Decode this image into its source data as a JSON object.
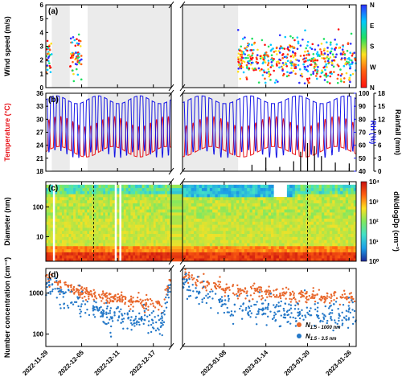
{
  "colors": {
    "gap": "#ebebeb",
    "temperature": "#e8141b",
    "rh": "#1414e6",
    "rainfall": "#000000",
    "n_total": "#e8672b",
    "n_small": "#2478c8"
  },
  "chart_data": [
    {
      "panel": "a",
      "type": "scatter",
      "ylabel": "Wind speed (m/s)",
      "ylim": [
        0,
        6
      ],
      "yticks": [
        0,
        1,
        2,
        3,
        4,
        5,
        6
      ],
      "colorbar_labels": [
        "N",
        "E",
        "S",
        "W",
        "N"
      ],
      "colorbar_colors": [
        "#3030ff",
        "#00c8ff",
        "#20e060",
        "#ffe020",
        "#ff6010",
        "#ff1010"
      ],
      "segments": [
        {
          "x0": "2022-11-29",
          "x1": "2022-11-30"
        },
        {
          "x0": "2022-12-03",
          "x1": "2022-12-05"
        },
        {
          "x0": "2023-01-10",
          "x1": "2023-01-27"
        }
      ]
    },
    {
      "panel": "b",
      "type": "line",
      "ylabel_left": "Temperature (°C)",
      "ylabel_rh": "RH (%)",
      "ylabel_rain": "Rainfall (mm)",
      "left_ticks": [
        18,
        21,
        24,
        27,
        30,
        33,
        36
      ],
      "rh_ticks": [
        40,
        50,
        60,
        70,
        80,
        90,
        100
      ],
      "rain_ticks": [
        0,
        3,
        6,
        9,
        12,
        15,
        18
      ],
      "temperature_range": [
        18,
        36
      ],
      "rh_range": [
        40,
        100
      ],
      "rain_range": [
        0,
        18
      ],
      "rain_bars": [
        {
          "x": "2023-01-12",
          "v": 1.5
        },
        {
          "x": "2023-01-14",
          "v": 3.2
        },
        {
          "x": "2023-01-16",
          "v": 1.0
        },
        {
          "x": "2023-01-18",
          "v": 2.3
        },
        {
          "x": "2023-01-19",
          "v": 4.5
        },
        {
          "x": "2023-01-20",
          "v": 6.5
        },
        {
          "x": "2023-01-21",
          "v": 5.8
        },
        {
          "x": "2023-01-22",
          "v": 3.5
        },
        {
          "x": "2023-01-24",
          "v": 2.0
        },
        {
          "x": "2023-01-26",
          "v": 1.8
        }
      ]
    },
    {
      "panel": "c",
      "type": "heatmap",
      "ylabel": "Diameter (nm)",
      "yticks": [
        10,
        100
      ],
      "yrange_nm": [
        1.5,
        700
      ],
      "colorbar_label": "dN/dlogDp (cm⁻³)",
      "colorbar_ticks": [
        "10⁰",
        "10¹",
        "10²",
        "10³",
        "10⁴"
      ],
      "colormap": [
        "#1e2a98",
        "#1ca0e8",
        "#42e0c8",
        "#7fe860",
        "#ffe020",
        "#ff6010",
        "#c81010"
      ],
      "dashed_lines": [
        "2022-12-07",
        "2023-01-20"
      ]
    },
    {
      "panel": "d",
      "type": "scatter",
      "ylabel": "Number concentration (cm⁻³)",
      "yticks": [
        100,
        1000
      ],
      "yrange": [
        50,
        4000
      ],
      "series": [
        {
          "name": "N",
          "sub": "1.5 - 1000 nm",
          "trend": [
            [
              0,
              2300
            ],
            [
              4,
              1300
            ],
            [
              8,
              900
            ],
            [
              12,
              700
            ],
            [
              16,
              600
            ],
            [
              19.5,
              500
            ],
            [
              21,
              2500
            ],
            [
              24,
              1800
            ],
            [
              28,
              1200
            ],
            [
              32,
              1000
            ],
            [
              36,
              900
            ],
            [
              39,
              800
            ]
          ]
        },
        {
          "name": "N",
          "sub": "1.5 - 3.5 nm",
          "trend": [
            [
              0,
              1800
            ],
            [
              4,
              700
            ],
            [
              8,
              400
            ],
            [
              12,
              250
            ],
            [
              16,
              220
            ],
            [
              19.5,
              200
            ],
            [
              21,
              2000
            ],
            [
              24,
              900
            ],
            [
              28,
              450
            ],
            [
              32,
              450
            ],
            [
              36,
              350
            ],
            [
              39,
              300
            ]
          ]
        }
      ]
    }
  ],
  "axis": {
    "break_after": "2022-12-20",
    "break_before": "2023-01-02",
    "x_ticks": [
      "2022-11-29",
      "2022-12-05",
      "2022-12-11",
      "2022-12-17",
      "2023-01-08",
      "2023-01-14",
      "2023-01-20",
      "2023-01-26"
    ]
  },
  "gaps": [
    {
      "x0": "2022-11-30",
      "x1": "2022-12-03"
    },
    {
      "x0": "2022-12-06",
      "x1": "2022-12-20"
    },
    {
      "x0": "2023-01-02",
      "x1": "2023-01-10"
    }
  ],
  "panel_labels": [
    "(a)",
    "(b)",
    "(c)",
    "(d)"
  ]
}
